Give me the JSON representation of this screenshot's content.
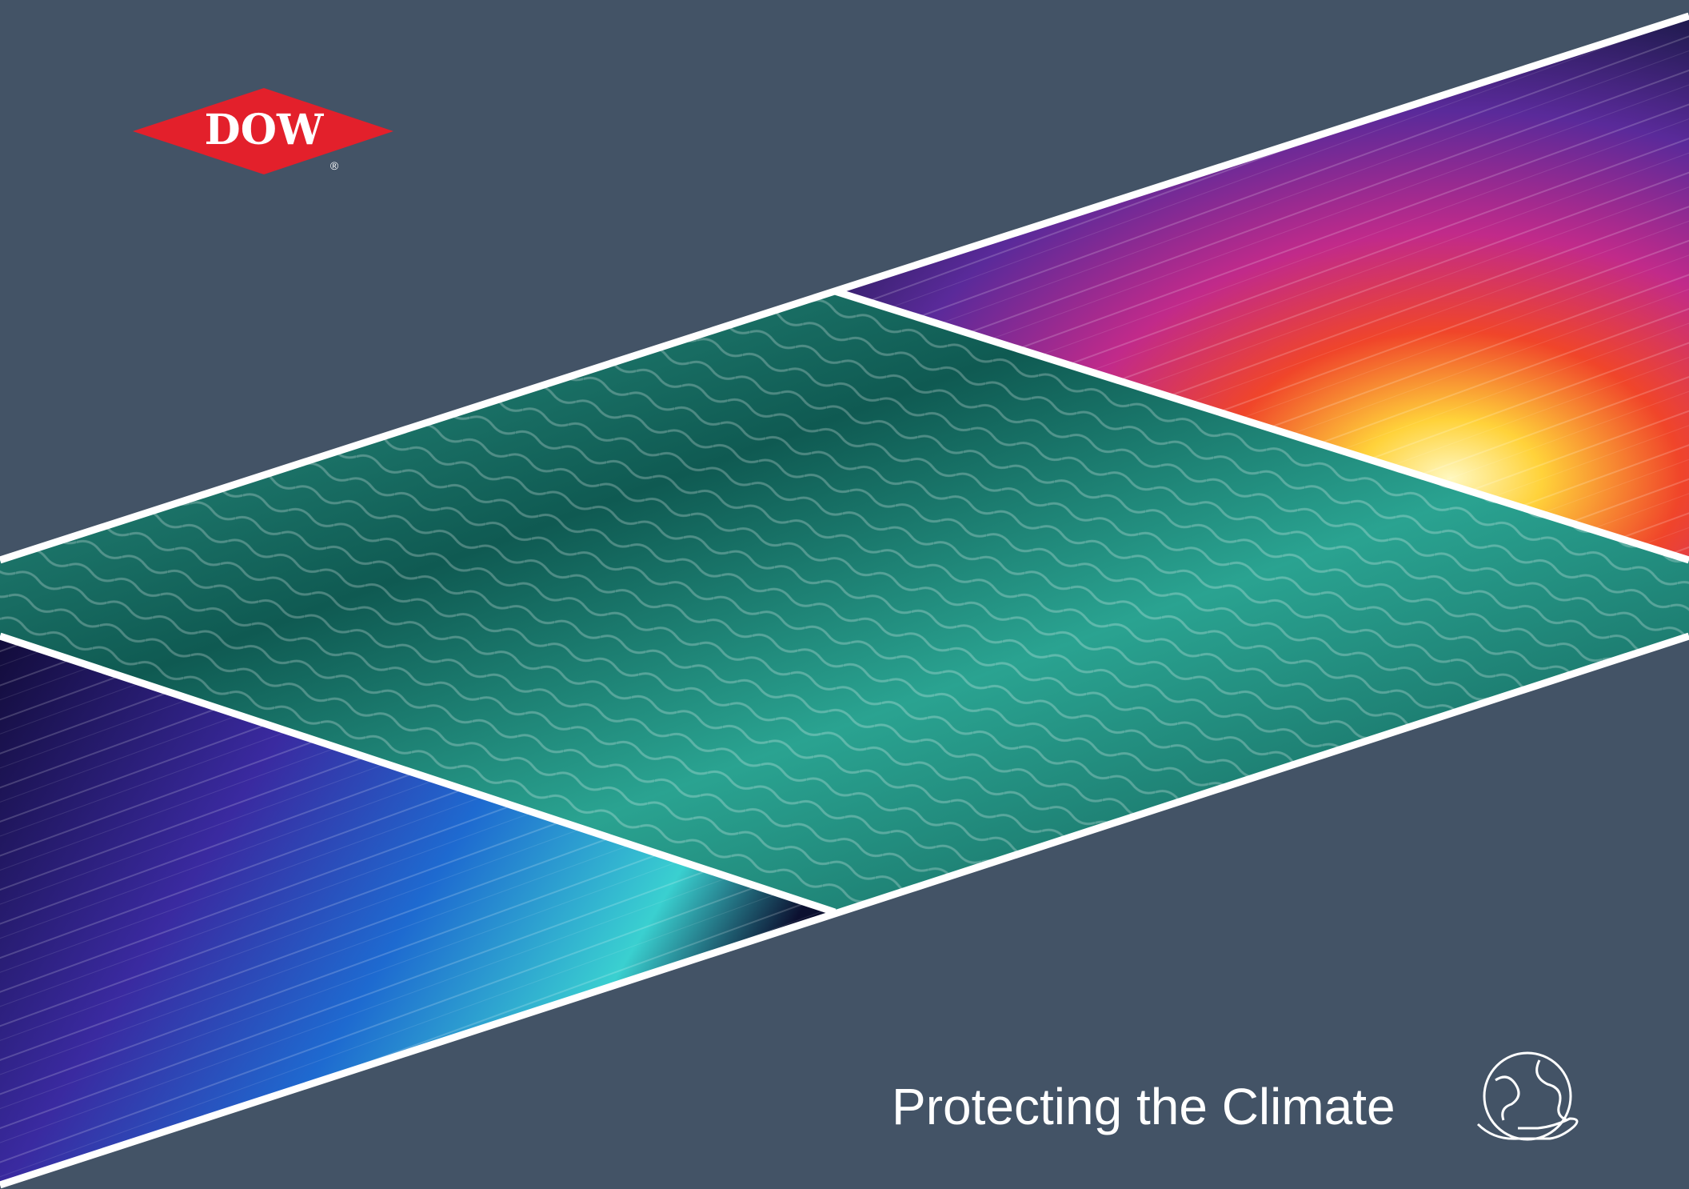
{
  "logo": {
    "text": "DOW",
    "mark": "®"
  },
  "title": "Protecting the Climate"
}
